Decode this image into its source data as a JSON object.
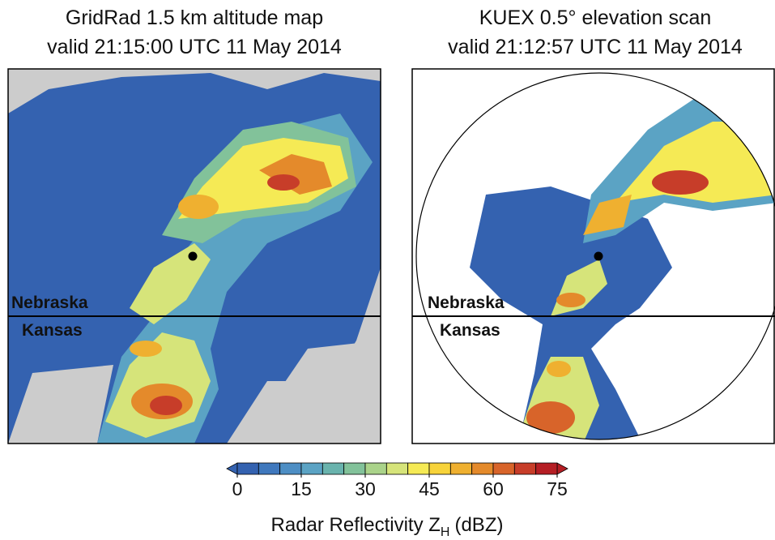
{
  "panels": [
    {
      "title": "GridRad 1.5 km altitude map",
      "subtitle": "valid 21:15:00 UTC 11 May 2014",
      "north_label": "Nebraska",
      "south_label": "Kansas"
    },
    {
      "title": "KUEX 0.5° elevation scan",
      "subtitle": "valid 21:12:57 UTC 11 May 2014",
      "north_label": "Nebraska",
      "south_label": "Kansas"
    }
  ],
  "colorbar": {
    "label": "Radar Reflectivity Z",
    "label_sub": "H",
    "label_unit": "(dBZ)",
    "lim": [
      0,
      75
    ],
    "ticks": [
      0,
      15,
      30,
      45,
      60,
      75
    ],
    "bounds": [
      0,
      5,
      10,
      15,
      20,
      25,
      30,
      35,
      40,
      45,
      50,
      55,
      60,
      65,
      70,
      75
    ],
    "colors": [
      "#3462b0",
      "#3f78bd",
      "#4d8ec4",
      "#5ba3c4",
      "#69b3ad",
      "#82c29a",
      "#aad38a",
      "#d6e47a",
      "#f5ea55",
      "#f7d33a",
      "#efb030",
      "#e48a2b",
      "#d8642a",
      "#c73d29",
      "#b51e24"
    ]
  }
}
